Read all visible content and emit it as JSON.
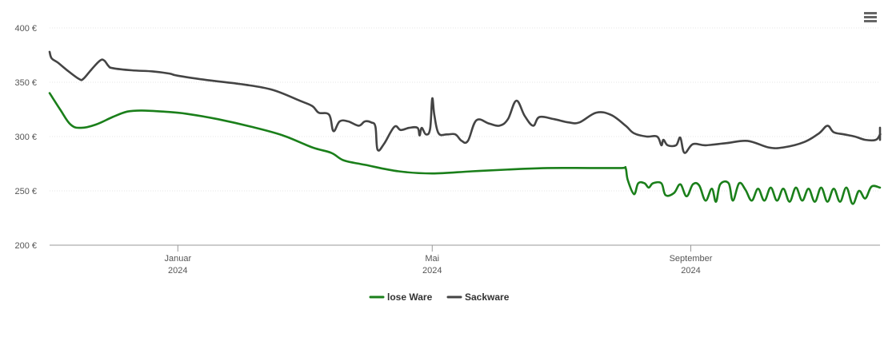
{
  "menu": {
    "icon": "hamburger-menu-icon"
  },
  "chart_data": {
    "type": "line",
    "title": "",
    "xlabel": "",
    "ylabel": "",
    "ylim": [
      200,
      400
    ],
    "y_ticks": [
      {
        "value": 200,
        "label": "200 €"
      },
      {
        "value": 250,
        "label": "250 €"
      },
      {
        "value": 300,
        "label": "300 €"
      },
      {
        "value": 350,
        "label": "350 €"
      },
      {
        "value": 400,
        "label": "400 €"
      }
    ],
    "x_range": [
      "2023-11-01",
      "2024-11-30"
    ],
    "x_ticks": [
      {
        "date": "2024-01-01",
        "month": "Januar",
        "year": "2024"
      },
      {
        "date": "2024-05-01",
        "month": "Mai",
        "year": "2024"
      },
      {
        "date": "2024-09-01",
        "month": "September",
        "year": "2024"
      }
    ],
    "grid": true,
    "legend_position": "bottom-center",
    "series": [
      {
        "name": "lose Ware",
        "color": "#1a7f1a",
        "points": [
          [
            "2023-11-01",
            340
          ],
          [
            "2023-11-06",
            325
          ],
          [
            "2023-11-11",
            311
          ],
          [
            "2023-11-16",
            308
          ],
          [
            "2023-11-23",
            311
          ],
          [
            "2023-12-01",
            318
          ],
          [
            "2023-12-08",
            323
          ],
          [
            "2023-12-15",
            324
          ],
          [
            "2023-12-25",
            323
          ],
          [
            "2024-01-05",
            321
          ],
          [
            "2024-01-20",
            316
          ],
          [
            "2024-02-05",
            309
          ],
          [
            "2024-02-20",
            301
          ],
          [
            "2024-03-05",
            290
          ],
          [
            "2024-03-14",
            285
          ],
          [
            "2024-03-20",
            278
          ],
          [
            "2024-03-30",
            274
          ],
          [
            "2024-04-15",
            268
          ],
          [
            "2024-05-01",
            266
          ],
          [
            "2024-05-20",
            268
          ],
          [
            "2024-06-10",
            270
          ],
          [
            "2024-06-25",
            271
          ],
          [
            "2024-07-15",
            271
          ],
          [
            "2024-07-30",
            271
          ],
          [
            "2024-08-01",
            271
          ],
          [
            "2024-08-02",
            260
          ],
          [
            "2024-08-05",
            247
          ],
          [
            "2024-08-07",
            257
          ],
          [
            "2024-08-10",
            257
          ],
          [
            "2024-08-12",
            253
          ],
          [
            "2024-08-14",
            257
          ],
          [
            "2024-08-18",
            257
          ],
          [
            "2024-08-20",
            246
          ],
          [
            "2024-08-24",
            248
          ],
          [
            "2024-08-27",
            256
          ],
          [
            "2024-08-30",
            245
          ],
          [
            "2024-09-02",
            256
          ],
          [
            "2024-09-05",
            255
          ],
          [
            "2024-09-08",
            241
          ],
          [
            "2024-09-11",
            252
          ],
          [
            "2024-09-13",
            240
          ],
          [
            "2024-09-15",
            256
          ],
          [
            "2024-09-19",
            257
          ],
          [
            "2024-09-21",
            241
          ],
          [
            "2024-09-24",
            257
          ],
          [
            "2024-09-27",
            251
          ],
          [
            "2024-09-30",
            241
          ],
          [
            "2024-10-03",
            252
          ],
          [
            "2024-10-06",
            241
          ],
          [
            "2024-10-09",
            253
          ],
          [
            "2024-10-12",
            241
          ],
          [
            "2024-10-15",
            252
          ],
          [
            "2024-10-18",
            240
          ],
          [
            "2024-10-21",
            253
          ],
          [
            "2024-10-24",
            241
          ],
          [
            "2024-10-27",
            252
          ],
          [
            "2024-10-30",
            240
          ],
          [
            "2024-11-02",
            253
          ],
          [
            "2024-11-05",
            240
          ],
          [
            "2024-11-08",
            252
          ],
          [
            "2024-11-11",
            240
          ],
          [
            "2024-11-14",
            253
          ],
          [
            "2024-11-17",
            238
          ],
          [
            "2024-11-20",
            250
          ],
          [
            "2024-11-23",
            243
          ],
          [
            "2024-11-26",
            254
          ],
          [
            "2024-11-30",
            253
          ]
        ]
      },
      {
        "name": "Sackware",
        "color": "#444444",
        "points": [
          [
            "2023-11-01",
            378
          ],
          [
            "2023-11-02",
            372
          ],
          [
            "2023-11-05",
            368
          ],
          [
            "2023-11-10",
            360
          ],
          [
            "2023-11-15",
            353
          ],
          [
            "2023-11-17",
            353
          ],
          [
            "2023-11-21",
            362
          ],
          [
            "2023-11-25",
            370
          ],
          [
            "2023-11-27",
            370
          ],
          [
            "2023-11-29",
            365
          ],
          [
            "2023-12-01",
            363
          ],
          [
            "2023-12-10",
            361
          ],
          [
            "2023-12-20",
            360
          ],
          [
            "2023-12-28",
            358
          ],
          [
            "2024-01-01",
            356
          ],
          [
            "2024-01-15",
            352
          ],
          [
            "2024-02-01",
            348
          ],
          [
            "2024-02-15",
            343
          ],
          [
            "2024-02-28",
            333
          ],
          [
            "2024-03-05",
            328
          ],
          [
            "2024-03-08",
            322
          ],
          [
            "2024-03-13",
            320
          ],
          [
            "2024-03-15",
            305
          ],
          [
            "2024-03-18",
            314
          ],
          [
            "2024-03-22",
            314
          ],
          [
            "2024-03-27",
            310
          ],
          [
            "2024-03-30",
            314
          ],
          [
            "2024-04-02",
            313
          ],
          [
            "2024-04-04",
            309
          ],
          [
            "2024-04-05",
            288
          ],
          [
            "2024-04-08",
            293
          ],
          [
            "2024-04-13",
            309
          ],
          [
            "2024-04-16",
            306
          ],
          [
            "2024-04-20",
            308
          ],
          [
            "2024-04-24",
            308
          ],
          [
            "2024-04-25",
            301
          ],
          [
            "2024-04-26",
            308
          ],
          [
            "2024-04-28",
            302
          ],
          [
            "2024-04-30",
            307
          ],
          [
            "2024-05-01",
            335
          ],
          [
            "2024-05-02",
            320
          ],
          [
            "2024-05-04",
            303
          ],
          [
            "2024-05-08",
            302
          ],
          [
            "2024-05-12",
            302
          ],
          [
            "2024-05-15",
            296
          ],
          [
            "2024-05-18",
            296
          ],
          [
            "2024-05-22",
            315
          ],
          [
            "2024-05-28",
            312
          ],
          [
            "2024-06-02",
            310
          ],
          [
            "2024-06-06",
            316
          ],
          [
            "2024-06-10",
            333
          ],
          [
            "2024-06-14",
            319
          ],
          [
            "2024-06-18",
            310
          ],
          [
            "2024-06-21",
            318
          ],
          [
            "2024-06-28",
            316
          ],
          [
            "2024-07-05",
            313
          ],
          [
            "2024-07-10",
            313
          ],
          [
            "2024-07-18",
            322
          ],
          [
            "2024-07-25",
            320
          ],
          [
            "2024-08-01",
            310
          ],
          [
            "2024-08-05",
            303
          ],
          [
            "2024-08-11",
            300
          ],
          [
            "2024-08-16",
            300
          ],
          [
            "2024-08-18",
            292
          ],
          [
            "2024-08-19",
            297
          ],
          [
            "2024-08-21",
            292
          ],
          [
            "2024-08-25",
            292
          ],
          [
            "2024-08-27",
            299
          ],
          [
            "2024-08-29",
            285
          ],
          [
            "2024-09-02",
            293
          ],
          [
            "2024-09-08",
            292
          ],
          [
            "2024-09-18",
            294
          ],
          [
            "2024-09-28",
            296
          ],
          [
            "2024-10-08",
            290
          ],
          [
            "2024-10-15",
            290
          ],
          [
            "2024-10-25",
            295
          ],
          [
            "2024-11-01",
            303
          ],
          [
            "2024-11-05",
            310
          ],
          [
            "2024-11-08",
            304
          ],
          [
            "2024-11-13",
            302
          ],
          [
            "2024-11-18",
            300
          ],
          [
            "2024-11-23",
            297
          ],
          [
            "2024-11-28",
            297
          ],
          [
            "2024-12-03",
            302
          ],
          [
            "2024-12-10",
            302
          ],
          [
            "2024-12-14",
            308
          ],
          [
            "2024-12-17",
            297
          ],
          [
            "2024-12-19",
            307
          ]
        ]
      }
    ]
  }
}
